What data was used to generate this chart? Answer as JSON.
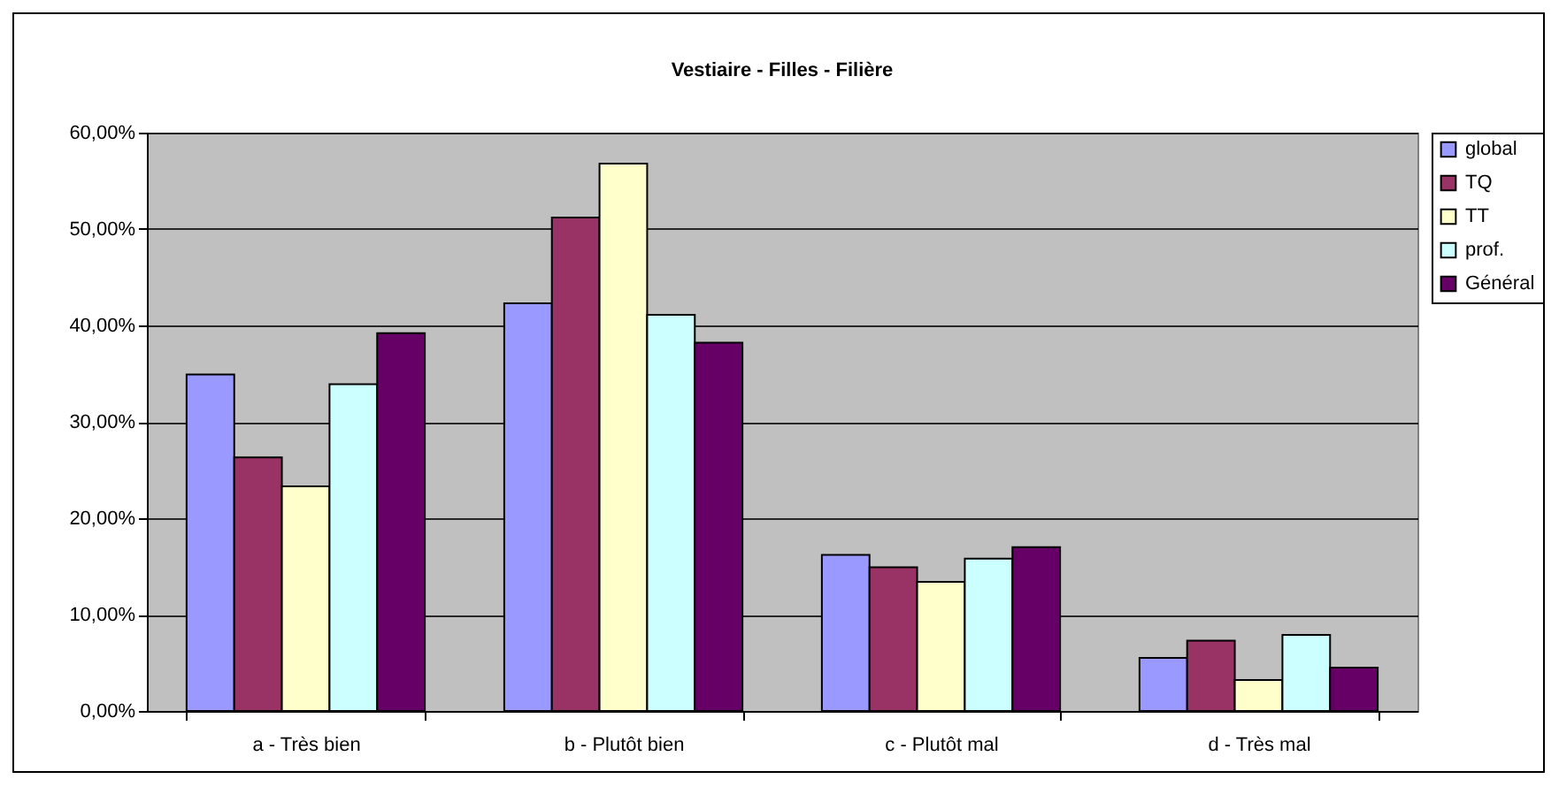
{
  "chart_data": {
    "type": "bar",
    "title": "Vestiaire - Filles - Filière",
    "categories": [
      "a - Très bien",
      "b - Plutôt bien",
      "c - Plutôt mal",
      "d - Très mal"
    ],
    "series": [
      {
        "name": "global",
        "color": "#9999ff",
        "values": [
          34.9,
          42.3,
          16.2,
          5.5
        ]
      },
      {
        "name": "TQ",
        "color": "#993366",
        "values": [
          26.3,
          51.2,
          14.9,
          7.3
        ]
      },
      {
        "name": "TT",
        "color": "#ffffcc",
        "values": [
          23.3,
          56.8,
          13.4,
          3.2
        ]
      },
      {
        "name": "prof.",
        "color": "#ccffff",
        "values": [
          33.9,
          41.1,
          15.8,
          7.9
        ]
      },
      {
        "name": "Général",
        "color": "#660066",
        "values": [
          39.2,
          38.2,
          17.0,
          4.5
        ]
      }
    ],
    "ylim": [
      0,
      60
    ],
    "yticks": [
      {
        "value": 0,
        "label": "0,00%"
      },
      {
        "value": 10,
        "label": "10,00%"
      },
      {
        "value": 20,
        "label": "20,00%"
      },
      {
        "value": 30,
        "label": "30,00%"
      },
      {
        "value": 40,
        "label": "40,00%"
      },
      {
        "value": 50,
        "label": "50,00%"
      },
      {
        "value": 60,
        "label": "60,00%"
      }
    ],
    "grid": "y",
    "legend": "right"
  }
}
